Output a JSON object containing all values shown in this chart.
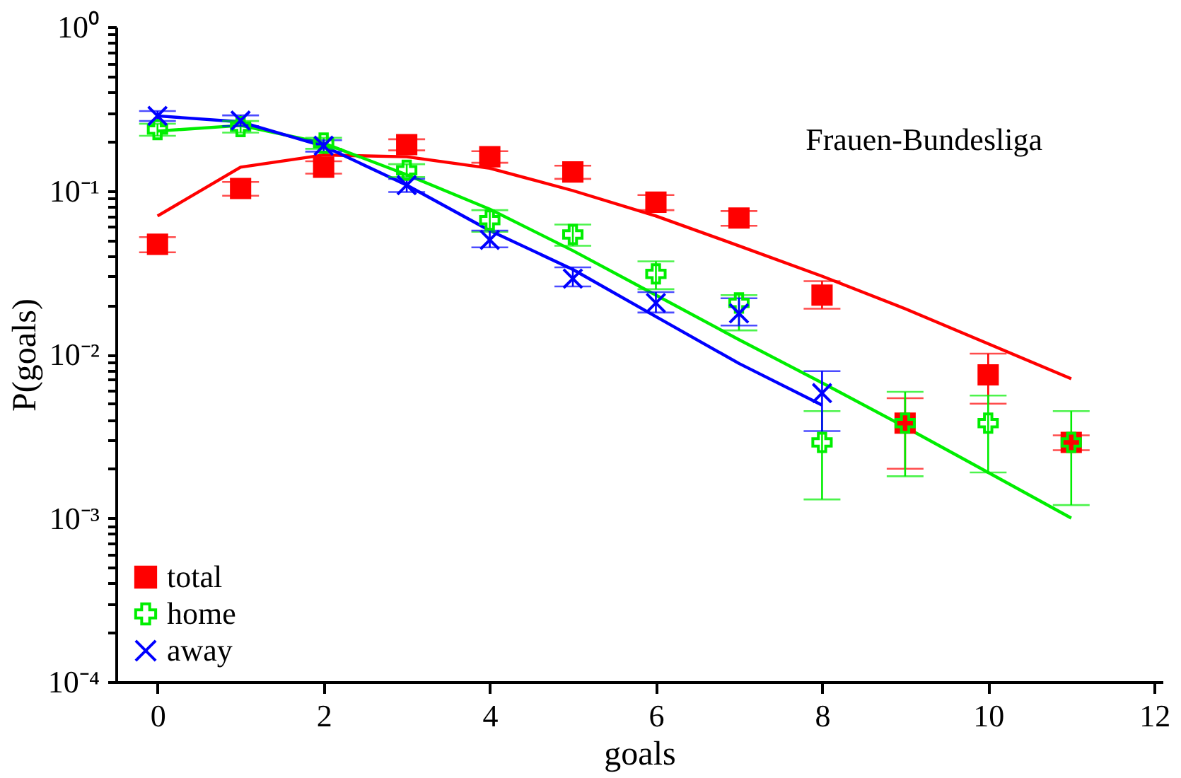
{
  "chart_data": {
    "type": "scatter",
    "xlabel": "goals",
    "ylabel": "P(goals)",
    "log": true,
    "grid": false,
    "legend": "bottom left",
    "annotations": [
      "Frauen-Bundesliga"
    ],
    "xlim": [
      -0.5,
      12.1
    ],
    "xticks": [
      0,
      2,
      4,
      6,
      8,
      10,
      12
    ],
    "ylim": [
      0.0001,
      1
    ],
    "yticks": [
      {
        "value": 0.0001,
        "label": "10⁻⁴"
      },
      {
        "value": 0.0002,
        "label": null
      },
      {
        "value": 0.0003,
        "label": null
      },
      {
        "value": 0.0004,
        "label": null
      },
      {
        "value": 0.0005,
        "label": null
      },
      {
        "value": 0.0006,
        "label": null
      },
      {
        "value": 0.0007,
        "label": null
      },
      {
        "value": 0.0008,
        "label": null
      },
      {
        "value": 0.0009,
        "label": null
      },
      {
        "value": 0.001,
        "label": "10⁻³"
      },
      {
        "value": 0.002,
        "label": null
      },
      {
        "value": 0.003,
        "label": null
      },
      {
        "value": 0.004,
        "label": null
      },
      {
        "value": 0.005,
        "label": null
      },
      {
        "value": 0.006,
        "label": null
      },
      {
        "value": 0.007,
        "label": null
      },
      {
        "value": 0.008,
        "label": null
      },
      {
        "value": 0.009,
        "label": null
      },
      {
        "value": 0.01,
        "label": "10⁻²"
      },
      {
        "value": 0.02,
        "label": null
      },
      {
        "value": 0.03,
        "label": null
      },
      {
        "value": 0.04,
        "label": null
      },
      {
        "value": 0.05,
        "label": null
      },
      {
        "value": 0.06,
        "label": null
      },
      {
        "value": 0.07,
        "label": null
      },
      {
        "value": 0.08,
        "label": null
      },
      {
        "value": 0.09,
        "label": null
      },
      {
        "value": 0.1,
        "label": "10⁻¹"
      },
      {
        "value": 0.2,
        "label": null
      },
      {
        "value": 0.3,
        "label": null
      },
      {
        "value": 0.4,
        "label": null
      },
      {
        "value": 0.5,
        "label": null
      },
      {
        "value": 0.6,
        "label": null
      },
      {
        "value": 0.7,
        "label": null
      },
      {
        "value": 0.8,
        "label": null
      },
      {
        "value": 0.9,
        "label": null
      },
      {
        "value": 1,
        "label": "10⁰"
      }
    ],
    "series": [
      {
        "type": "line",
        "color": "#ff0000",
        "x": [
          0,
          1,
          2,
          3,
          4,
          5,
          6,
          7,
          8,
          9,
          10,
          11
        ],
        "values": [
          0.07,
          0.139,
          0.165,
          0.161,
          0.137,
          0.1,
          0.07,
          0.046,
          0.03,
          0.019,
          0.0116,
          0.0071
        ]
      },
      {
        "type": "line",
        "color": "#00ee00",
        "x": [
          0,
          1,
          2,
          3,
          4,
          5,
          6,
          7,
          8,
          9,
          10,
          11
        ],
        "values": [
          0.231,
          0.25,
          0.195,
          0.125,
          0.077,
          0.043,
          0.023,
          0.0123,
          0.0067,
          0.0036,
          0.0019,
          0.001
        ]
      },
      {
        "type": "line",
        "color": "#0000ff",
        "x": [
          0,
          1,
          2,
          3,
          4,
          5,
          6,
          7,
          8
        ],
        "values": [
          0.286,
          0.263,
          0.187,
          0.108,
          0.057,
          0.033,
          0.017,
          0.0088,
          0.0049
        ]
      },
      {
        "name": "total",
        "color": "#ff0000",
        "marker": "square",
        "x": [
          0,
          1,
          2,
          3,
          4,
          5,
          6,
          7,
          8,
          9,
          10,
          11
        ],
        "values": [
          0.047,
          0.103,
          0.139,
          0.191,
          0.161,
          0.13,
          0.085,
          0.068,
          0.023,
          0.0038,
          0.0075,
          0.0029
        ],
        "errors": [
          0.005,
          0.01,
          0.012,
          0.015,
          0.013,
          0.012,
          0.009,
          0.007,
          [
            0.019,
            0.028
          ],
          [
            0.002,
            0.0054
          ],
          [
            0.005,
            0.0101
          ],
          0.0003
        ]
      },
      {
        "name": "home",
        "color": "#00ee00",
        "marker": "plus",
        "x": [
          0,
          1,
          2,
          3,
          4,
          5,
          6,
          7,
          8,
          9,
          10,
          11
        ],
        "values": [
          0.236,
          0.246,
          0.195,
          0.133,
          0.066,
          0.054,
          0.031,
          0.0206,
          0.0029,
          0.0038,
          0.0038,
          0.0029
        ],
        "errors": [
          0.02,
          0.02,
          0.015,
          0.012,
          0.01,
          0.008,
          [
            0.025,
            0.037
          ],
          [
            0.014,
            0.023
          ],
          [
            0.0013,
            0.0045
          ],
          [
            0.0018,
            0.0059
          ],
          [
            0.0019,
            0.0056
          ],
          [
            0.0012,
            0.0045
          ]
        ]
      },
      {
        "name": "away",
        "color": "#0000ff",
        "marker": "cross",
        "x": [
          0,
          1,
          2,
          3,
          4,
          5,
          6,
          7,
          8
        ],
        "values": [
          0.286,
          0.268,
          0.188,
          0.108,
          0.05,
          0.029,
          0.0206,
          0.0178,
          0.0058
        ],
        "errors": [
          0.02,
          0.02,
          0.015,
          0.01,
          [
            0.045,
            0.057
          ],
          [
            0.026,
            0.034
          ],
          [
            0.018,
            0.024
          ],
          [
            0.015,
            0.022
          ],
          [
            0.0034,
            0.0079
          ]
        ]
      }
    ]
  }
}
